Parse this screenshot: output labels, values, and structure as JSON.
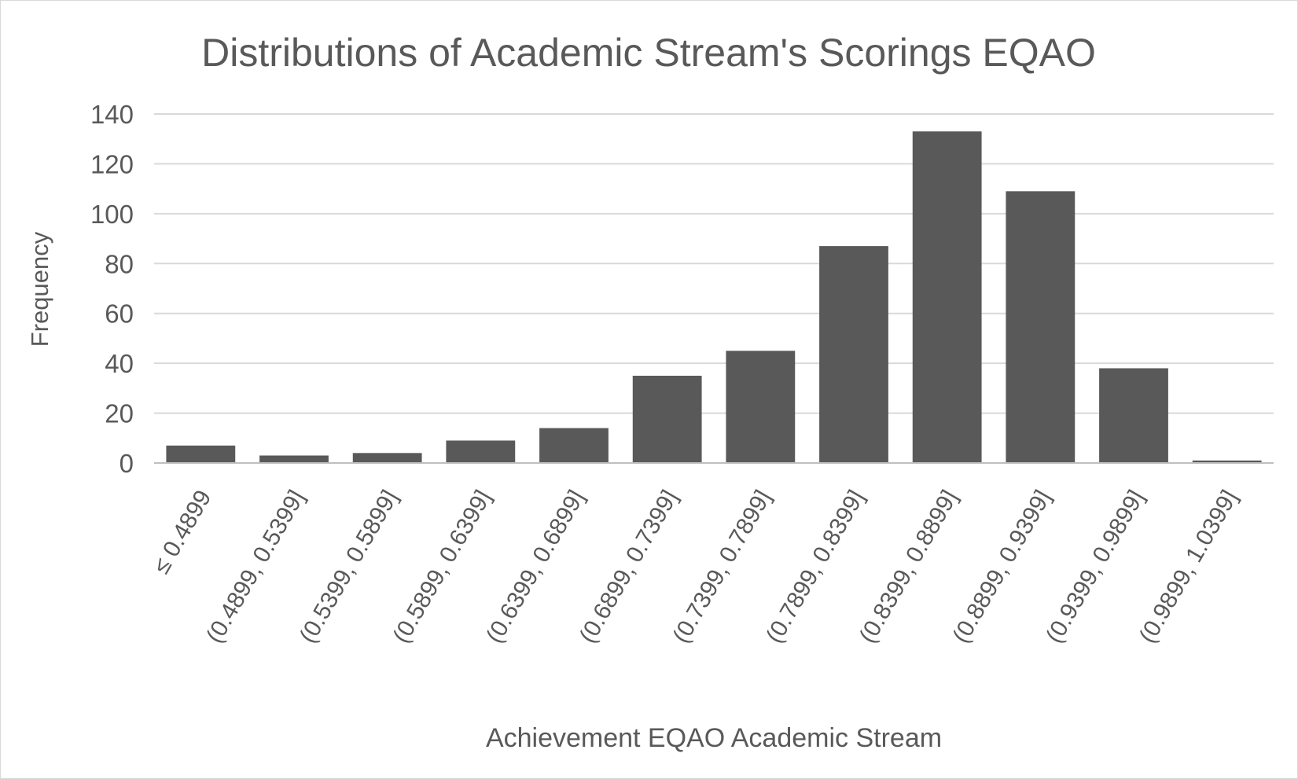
{
  "chart_data": {
    "type": "bar",
    "title": "Distributions of Academic Stream's Scorings EQAO",
    "xlabel": "Achievement EQAO Academic Stream",
    "ylabel": "Frequency",
    "categories": [
      "≤ 0.4899",
      "(0.4899, 0.5399]",
      "(0.5399, 0.5899]",
      "(0.5899, 0.6399]",
      "(0.6399, 0.6899]",
      "(0.6899, 0.7399]",
      "(0.7399, 0.7899]",
      "(0.7899, 0.8399]",
      "(0.8399, 0.8899]",
      "(0.8899, 0.9399]",
      "(0.9399, 0.9899]",
      "(0.9899, 1.0399]"
    ],
    "values": [
      7,
      3,
      4,
      9,
      14,
      35,
      45,
      87,
      133,
      109,
      38,
      1
    ],
    "ylim": [
      0,
      140
    ],
    "yticks": [
      0,
      20,
      40,
      60,
      80,
      100,
      120,
      140
    ],
    "grid": true,
    "legend": "none",
    "colors": {
      "bar": "#595959",
      "grid": "#d9d9d9",
      "text": "#595959",
      "axis": "#bfbfbf"
    }
  }
}
